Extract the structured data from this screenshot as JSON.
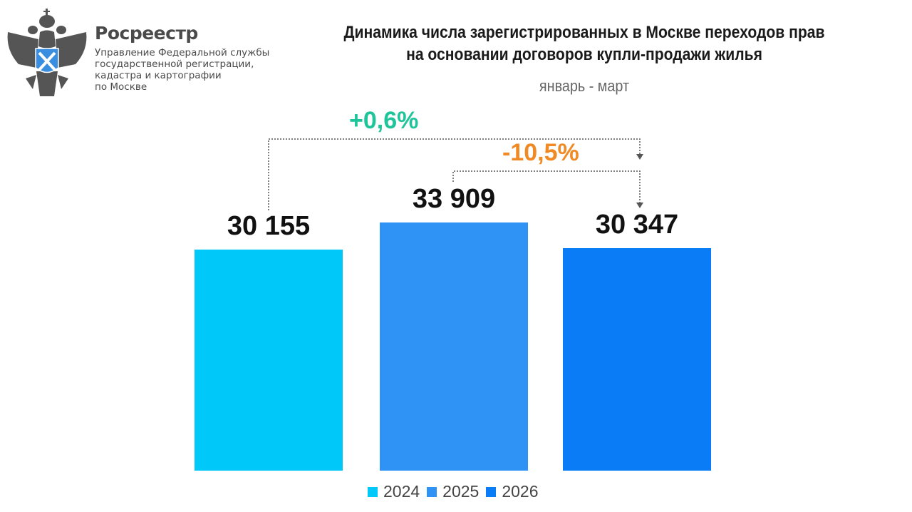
{
  "header": {
    "brand": "Росреестр",
    "org_lines": [
      "Управление Федеральной службы",
      "государственной регистрации,",
      "кадастра и картографии",
      "по Москве"
    ]
  },
  "chart_data": {
    "type": "bar",
    "title": "Динамика числа зарегистрированных в Москве переходов прав на основании договоров купли-продажи жилья",
    "title_lines": [
      "Динамика числа зарегистрированных в Москве переходов прав",
      "на основании договоров купли-продажи жилья"
    ],
    "subtitle": "январь - март",
    "categories": [
      "2024",
      "2025",
      "2026"
    ],
    "values": [
      30155,
      33909,
      30347
    ],
    "value_labels": [
      "30 155",
      "33 909",
      "30 347"
    ],
    "colors": [
      "#00c8f8",
      "#2e93f5",
      "#0a7cf5"
    ],
    "ylim": [
      0,
      40000
    ],
    "grid": false,
    "legend": {
      "position": "bottom",
      "entries": [
        "2024",
        "2025",
        "2026"
      ]
    },
    "annotations": [
      {
        "text": "+0,6%",
        "from": "2024",
        "to": "2026",
        "color": "#1fc49a"
      },
      {
        "text": "-10,5%",
        "from": "2025",
        "to": "2026",
        "color": "#f08a24"
      }
    ]
  }
}
